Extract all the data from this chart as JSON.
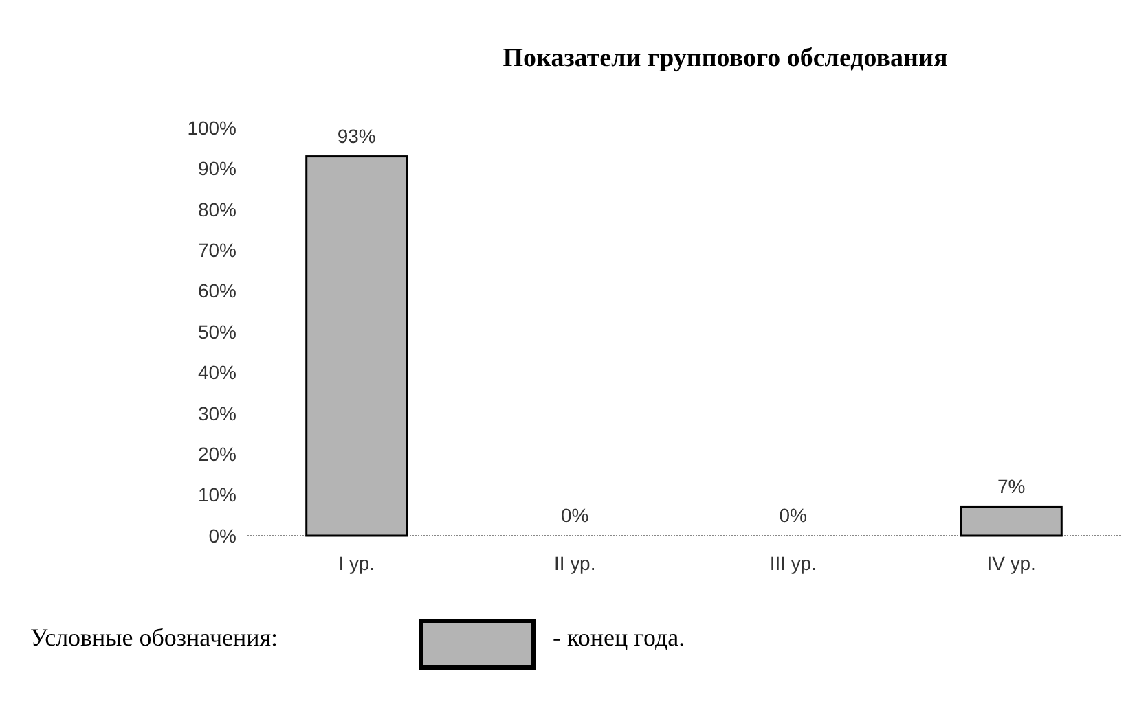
{
  "chart_data": {
    "type": "bar",
    "title": "Показатели группового обследования",
    "categories": [
      "I ур.",
      "II ур.",
      "III ур.",
      "IV ур."
    ],
    "series": [
      {
        "name": "- конец года.",
        "color": "#b4b4b4",
        "values": [
          93,
          0,
          0,
          7
        ],
        "value_labels": [
          "93%",
          "0%",
          "0%",
          "7%"
        ]
      }
    ],
    "ylim": [
      0,
      100
    ],
    "yticks": [
      {
        "value": 0,
        "label": "0%"
      },
      {
        "value": 10,
        "label": "10%"
      },
      {
        "value": 20,
        "label": "20%"
      },
      {
        "value": 30,
        "label": "30%"
      },
      {
        "value": 40,
        "label": "40%"
      },
      {
        "value": 50,
        "label": "50%"
      },
      {
        "value": 60,
        "label": "60%"
      },
      {
        "value": 70,
        "label": "70%"
      },
      {
        "value": 80,
        "label": "80%"
      },
      {
        "value": 90,
        "label": "90%"
      },
      {
        "value": 100,
        "label": "100%"
      }
    ],
    "legend": "bottom left",
    "legend_title": "Условные обозначения:",
    "grid": false
  }
}
